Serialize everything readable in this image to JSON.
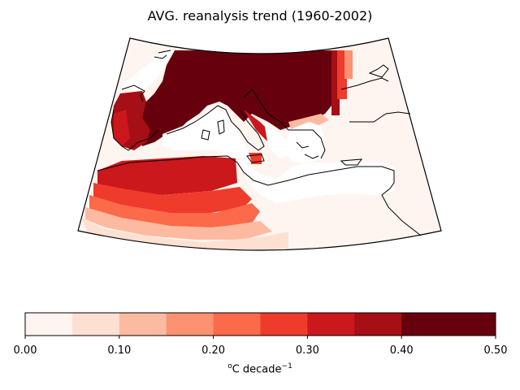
{
  "title": "AVG. reanalysis trend (1960-2002)",
  "colorbar": {
    "min": 0.0,
    "max": 0.5,
    "step": 0.05,
    "colors": [
      "#fff5f0",
      "#fee0d2",
      "#fcbba1",
      "#fc9272",
      "#fb6a4a",
      "#ef3b2c",
      "#cb181d",
      "#a50f15",
      "#67000d",
      "#67000d"
    ],
    "ticks": [
      "0.00",
      "0.10",
      "0.20",
      "0.30",
      "0.40",
      "0.50"
    ],
    "unit_prefix": "o",
    "unit_main": "C decade",
    "unit_exp": "−1"
  }
}
